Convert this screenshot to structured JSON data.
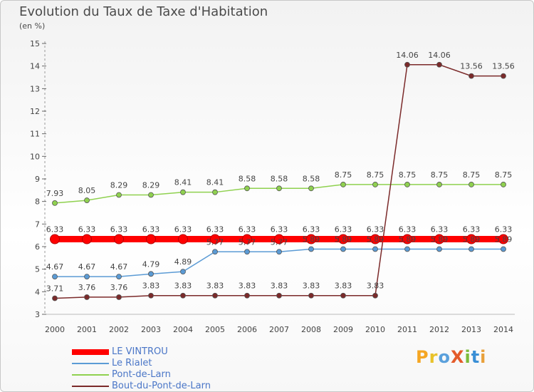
{
  "title": "Evolution du Taux de Taxe d'Habitation",
  "subtitle": "(en %)",
  "brand": {
    "text": "ProXiti",
    "letters": [
      {
        "ch": "P",
        "color": "#f5a623"
      },
      {
        "ch": "r",
        "color": "#e8c22a"
      },
      {
        "ch": "o",
        "color": "#5aa0dc"
      },
      {
        "ch": "X",
        "color": "#e45b2a"
      },
      {
        "ch": "i",
        "color": "#7dbb3a"
      },
      {
        "ch": "t",
        "color": "#3a8fd6"
      },
      {
        "ch": "i",
        "color": "#e8a03a"
      }
    ]
  },
  "chart_data": {
    "type": "line",
    "title": "Evolution du Taux de Taxe d'Habitation",
    "ylabel": "(en %)",
    "xlabel": "",
    "x": [
      "2000",
      "2001",
      "2002",
      "2003",
      "2004",
      "2005",
      "2006",
      "2007",
      "2008",
      "2009",
      "2010",
      "2011",
      "2012",
      "2013",
      "2014"
    ],
    "ylim": [
      3,
      15
    ],
    "yticks": [
      3,
      4,
      5,
      6,
      7,
      8,
      9,
      10,
      11,
      12,
      13,
      14,
      15
    ],
    "grid": false,
    "legend_position": "bottom-left",
    "series": [
      {
        "name": "LE VINTROU",
        "color": "#ff0000",
        "values": [
          6.33,
          6.33,
          6.33,
          6.33,
          6.33,
          6.33,
          6.33,
          6.33,
          6.33,
          6.33,
          6.33,
          6.33,
          6.33,
          6.33,
          6.33
        ],
        "labels": [
          "6.33",
          "6.33",
          "6.33",
          "6.33",
          "6.33",
          "6.33",
          "6.33",
          "6.33",
          "6.33",
          "6.33",
          "6.33",
          "6.33",
          "6.33",
          "6.33",
          "6.33"
        ]
      },
      {
        "name": "Le Rialet",
        "color": "#5b9bd5",
        "values": [
          4.67,
          4.67,
          4.67,
          4.79,
          4.89,
          5.77,
          5.77,
          5.77,
          5.89,
          5.89,
          5.89,
          5.89,
          5.89,
          5.89,
          5.89
        ],
        "labels": [
          "4.67",
          "4.67",
          "4.67",
          "4.79",
          "4.89",
          "5.77",
          "5.77",
          "5.77",
          "5.89",
          "5.89",
          "5.89",
          "5.89",
          "5.89",
          "5.89",
          "5.89"
        ]
      },
      {
        "name": "Pont-de-Larn",
        "color": "#8fd14f",
        "values": [
          7.93,
          8.05,
          8.29,
          8.29,
          8.41,
          8.41,
          8.58,
          8.58,
          8.58,
          8.75,
          8.75,
          8.75,
          8.75,
          8.75,
          8.75
        ],
        "labels": [
          "7.93",
          "8.05",
          "8.29",
          "8.29",
          "8.41",
          "8.41",
          "8.58",
          "8.58",
          "8.58",
          "8.75",
          "8.75",
          "8.75",
          "8.75",
          "8.75",
          "8.75"
        ]
      },
      {
        "name": "Bout-du-Pont-de-Larn",
        "color": "#7b2a2a",
        "values": [
          3.71,
          3.76,
          3.76,
          3.83,
          3.83,
          3.83,
          3.83,
          3.83,
          3.83,
          3.83,
          3.83,
          14.06,
          14.06,
          13.56,
          13.56
        ],
        "labels": [
          "3.71",
          "3.76",
          "3.76",
          "3.83",
          "3.83",
          "3.83",
          "3.83",
          "3.83",
          "3.83",
          "3.83",
          "3.83",
          "14.06",
          "14.06",
          "13.56",
          "13.56"
        ]
      }
    ]
  }
}
